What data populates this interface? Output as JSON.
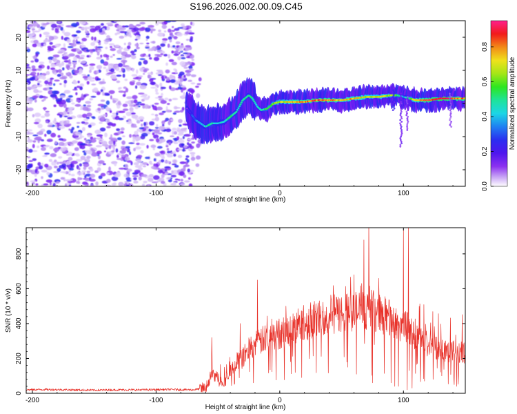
{
  "title": "S196.2026.002.00.09.C45",
  "chart_data": [
    {
      "type": "heatmap",
      "panel": "spectrogram",
      "xlabel": "Height of straight line (km)",
      "ylabel": "Frequency (Hz)",
      "xlim": [
        -205,
        150
      ],
      "ylim": [
        -25,
        25
      ],
      "x_ticks": [
        -200,
        -100,
        0,
        100
      ],
      "y_ticks": [
        20,
        10,
        0,
        -10,
        -20
      ],
      "colorbar": {
        "label": "Normalized spectral amplitude",
        "range": [
          0,
          0.95
        ],
        "ticks": [
          0.0,
          0.2,
          0.4,
          0.6,
          0.8
        ],
        "colormap": [
          "#ffffff",
          "#b58cf2",
          "#7a1cf2",
          "#3023f0",
          "#1e7ff2",
          "#1cd9e6",
          "#1ee39a",
          "#2ee61f",
          "#a6e617",
          "#f2e31a",
          "#f28c17",
          "#f21919",
          "#f2177a",
          "#ff1f8c"
        ]
      },
      "noise_region_x": [
        -205,
        -70
      ],
      "ridge": {
        "x": [
          -75,
          -68,
          -60,
          -55,
          -50,
          -45,
          -40,
          -35,
          -30,
          -25,
          -22,
          -18,
          -15,
          -10,
          -5,
          0,
          10,
          20,
          30,
          40,
          50,
          60,
          70,
          80,
          90,
          95,
          100,
          110,
          120,
          130,
          140,
          150
        ],
        "freq": [
          -1.5,
          -5.0,
          -7.0,
          -6.0,
          -6.0,
          -5.5,
          -4.0,
          -2.5,
          1.0,
          2.5,
          1.5,
          -1.0,
          -2.0,
          -1.5,
          0.0,
          0.5,
          0.5,
          0.5,
          1.0,
          1.0,
          1.0,
          1.5,
          2.0,
          2.0,
          2.5,
          2.5,
          2.0,
          1.0,
          1.0,
          1.5,
          1.5,
          1.5
        ],
        "amplitude": [
          0.15,
          0.3,
          0.4,
          0.45,
          0.35,
          0.4,
          0.45,
          0.4,
          0.45,
          0.4,
          0.45,
          0.4,
          0.4,
          0.5,
          0.55,
          0.6,
          0.7,
          0.75,
          0.8,
          0.75,
          0.7,
          0.7,
          0.65,
          0.65,
          0.6,
          0.5,
          0.3,
          0.7,
          0.8,
          0.85,
          0.8,
          0.75
        ]
      }
    },
    {
      "type": "line",
      "panel": "snr",
      "xlabel": "Height of straight line (km)",
      "ylabel": "SNR (10 * v/v)",
      "xlim": [
        -205,
        150
      ],
      "ylim": [
        0,
        950
      ],
      "x_ticks": [
        -200,
        -100,
        0,
        100
      ],
      "y_ticks": [
        0,
        200,
        400,
        600,
        800
      ],
      "series": [
        {
          "name": "SNR",
          "color": "#e8322a",
          "x": [
            -205,
            -190,
            -170,
            -150,
            -130,
            -110,
            -90,
            -70,
            -60,
            -55,
            -50,
            -45,
            -40,
            -35,
            -30,
            -25,
            -20,
            -15,
            -10,
            -5,
            0,
            10,
            20,
            30,
            40,
            50,
            60,
            70,
            80,
            90,
            95,
            100,
            105,
            110,
            120,
            130,
            140,
            150
          ],
          "values": [
            20,
            22,
            20,
            18,
            20,
            20,
            22,
            20,
            30,
            110,
            90,
            60,
            120,
            180,
            200,
            260,
            280,
            300,
            320,
            330,
            340,
            370,
            400,
            430,
            450,
            460,
            470,
            480,
            470,
            420,
            400,
            390,
            360,
            320,
            280,
            260,
            240,
            225
          ]
        }
      ],
      "spikes": [
        {
          "x": -55,
          "value": 320
        },
        {
          "x": -32,
          "value": 400
        },
        {
          "x": -18,
          "value": 650
        },
        {
          "x": 5,
          "value": 500
        },
        {
          "x": 25,
          "value": 520
        },
        {
          "x": 60,
          "value": 680
        },
        {
          "x": 68,
          "value": 880
        },
        {
          "x": 72,
          "value": 960
        },
        {
          "x": 80,
          "value": 660
        },
        {
          "x": 100,
          "value": 940
        },
        {
          "x": 104,
          "value": 950
        }
      ],
      "dips": [
        {
          "x": 55,
          "value": 150
        },
        {
          "x": 62,
          "value": 110
        },
        {
          "x": 75,
          "value": 60
        },
        {
          "x": 90,
          "value": 60
        },
        {
          "x": 93,
          "value": 40
        },
        {
          "x": 96,
          "value": 40
        },
        {
          "x": 103,
          "value": 20
        },
        {
          "x": 107,
          "value": 30
        },
        {
          "x": 117,
          "value": 70
        },
        {
          "x": 124,
          "value": 80
        },
        {
          "x": 131,
          "value": 100
        },
        {
          "x": 141,
          "value": 50
        },
        {
          "x": 143,
          "value": 40
        }
      ]
    }
  ]
}
